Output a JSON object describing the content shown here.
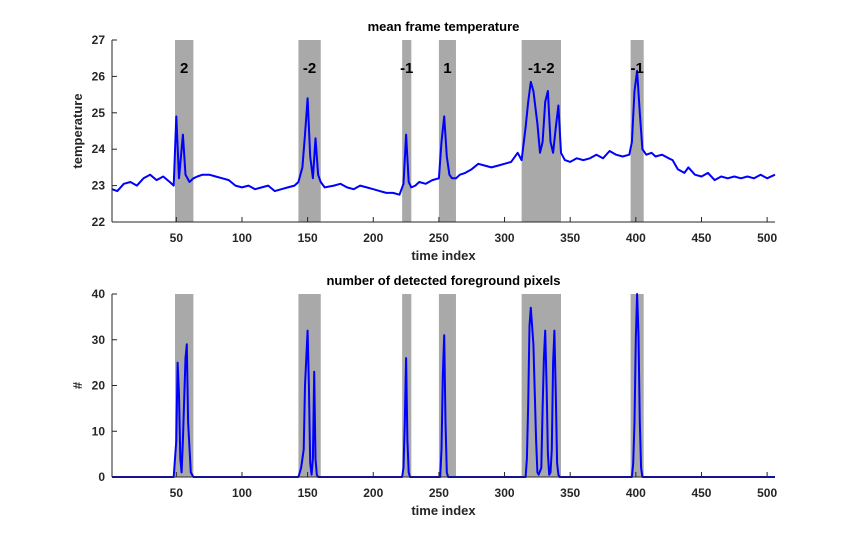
{
  "chart_data": [
    {
      "type": "line",
      "title": "mean frame temperature",
      "xlabel": "time index",
      "ylabel": "temperature",
      "xlim": [
        1,
        506
      ],
      "ylim": [
        22,
        27
      ],
      "xticks": [
        50,
        100,
        150,
        200,
        250,
        300,
        350,
        400,
        450,
        500
      ],
      "yticks": [
        22,
        23,
        24,
        25,
        26,
        27
      ],
      "line_color": "#0000ff",
      "shade_color": "#a9a9a9",
      "shaded_regions": [
        {
          "start": 49,
          "end": 63,
          "label": "2"
        },
        {
          "start": 143,
          "end": 160,
          "label": "-2"
        },
        {
          "start": 222,
          "end": 229,
          "label": "-1"
        },
        {
          "start": 250,
          "end": 263,
          "label": "1"
        },
        {
          "start": 313,
          "end": 343,
          "label": "-1-2"
        },
        {
          "start": 396,
          "end": 406,
          "label": "-1"
        }
      ],
      "series": [
        {
          "x": [
            1,
            5,
            10,
            15,
            20,
            25,
            30,
            35,
            40,
            45,
            48,
            50,
            52,
            55,
            57,
            60,
            63,
            66,
            70,
            75,
            80,
            85,
            90,
            95,
            100,
            105,
            110,
            115,
            120,
            125,
            130,
            135,
            140,
            143,
            146,
            148,
            150,
            152,
            154,
            156,
            158,
            160,
            163,
            170,
            175,
            180,
            185,
            190,
            195,
            200,
            205,
            210,
            215,
            220,
            223,
            225,
            227,
            229,
            232,
            235,
            240,
            245,
            250,
            252,
            254,
            256,
            258,
            260,
            263,
            266,
            270,
            275,
            280,
            285,
            290,
            295,
            300,
            305,
            310,
            313,
            316,
            318,
            320,
            322,
            325,
            327,
            329,
            331,
            333,
            335,
            337,
            339,
            341,
            343,
            346,
            350,
            355,
            360,
            365,
            370,
            375,
            380,
            385,
            390,
            395,
            397,
            399,
            401,
            403,
            405,
            408,
            412,
            415,
            420,
            425,
            428,
            432,
            437,
            440,
            445,
            450,
            455,
            460,
            465,
            470,
            475,
            480,
            485,
            490,
            495,
            500,
            506
          ],
          "y": [
            22.9,
            22.85,
            23.05,
            23.1,
            23.0,
            23.2,
            23.3,
            23.15,
            23.25,
            23.1,
            23.0,
            24.9,
            23.2,
            24.4,
            23.3,
            23.1,
            23.2,
            23.25,
            23.3,
            23.3,
            23.25,
            23.2,
            23.15,
            23.0,
            22.95,
            23.0,
            22.9,
            22.95,
            23.0,
            22.85,
            22.9,
            22.95,
            23.0,
            23.1,
            23.5,
            24.4,
            25.4,
            23.8,
            23.2,
            24.3,
            23.3,
            23.1,
            22.95,
            23.0,
            23.05,
            22.95,
            22.9,
            23.0,
            22.95,
            22.9,
            22.85,
            22.8,
            22.8,
            22.75,
            23.05,
            24.4,
            23.1,
            22.95,
            23.0,
            23.1,
            23.05,
            23.15,
            23.2,
            24.2,
            24.9,
            23.8,
            23.3,
            23.2,
            23.2,
            23.3,
            23.35,
            23.45,
            23.6,
            23.55,
            23.5,
            23.55,
            23.6,
            23.65,
            23.9,
            23.7,
            24.6,
            25.3,
            25.85,
            25.6,
            24.7,
            23.9,
            24.2,
            25.3,
            25.6,
            24.2,
            23.9,
            24.6,
            25.2,
            23.9,
            23.7,
            23.65,
            23.75,
            23.7,
            23.75,
            23.85,
            23.75,
            23.95,
            23.85,
            23.8,
            23.85,
            24.2,
            25.6,
            26.15,
            25.0,
            24.0,
            23.85,
            23.9,
            23.8,
            23.85,
            23.75,
            23.7,
            23.45,
            23.35,
            23.5,
            23.3,
            23.25,
            23.35,
            23.15,
            23.25,
            23.2,
            23.25,
            23.2,
            23.25,
            23.2,
            23.3,
            23.2,
            23.3
          ]
        }
      ]
    },
    {
      "type": "line",
      "title": "number of detected foreground pixels",
      "xlabel": "time index",
      "ylabel": "#",
      "xlim": [
        1,
        506
      ],
      "ylim": [
        0,
        40
      ],
      "xticks": [
        50,
        100,
        150,
        200,
        250,
        300,
        350,
        400,
        450,
        500
      ],
      "yticks": [
        0,
        10,
        20,
        30,
        40
      ],
      "line_color": "#0000ff",
      "shade_color": "#a9a9a9",
      "shaded_regions": [
        {
          "start": 49,
          "end": 63
        },
        {
          "start": 143,
          "end": 160
        },
        {
          "start": 222,
          "end": 229
        },
        {
          "start": 250,
          "end": 263
        },
        {
          "start": 313,
          "end": 343
        },
        {
          "start": 396,
          "end": 406
        }
      ],
      "series": [
        {
          "x": [
            1,
            48,
            50,
            51,
            52,
            53,
            54,
            55,
            57,
            58,
            59,
            61,
            63,
            143,
            145,
            147,
            148,
            150,
            151,
            152,
            153,
            154,
            155,
            156,
            157,
            158,
            160,
            222,
            223,
            224,
            225,
            226,
            227,
            228,
            251,
            252,
            253,
            254,
            255,
            256,
            257,
            316,
            317,
            318,
            319,
            320,
            322,
            324,
            325,
            326,
            328,
            329,
            330,
            331,
            332,
            333,
            334,
            335,
            336,
            337,
            338,
            339,
            340,
            341,
            342,
            397,
            398,
            399,
            400,
            401,
            402,
            403,
            404,
            405,
            506
          ],
          "y": [
            0,
            0,
            8,
            25,
            18,
            4,
            1,
            8,
            26,
            29,
            12,
            1,
            0,
            0,
            2,
            6,
            20,
            32,
            20,
            3,
            0.5,
            4,
            23,
            4,
            0.5,
            0,
            0,
            0,
            2,
            12,
            26,
            8,
            1,
            0,
            0,
            6,
            22,
            31,
            12,
            1,
            0,
            0,
            4,
            16,
            33,
            37,
            29,
            8,
            1,
            0.5,
            2,
            15,
            26,
            32,
            20,
            5,
            0.5,
            1,
            6,
            25,
            32,
            18,
            3,
            0.5,
            0,
            0,
            3,
            12,
            30,
            40,
            31,
            12,
            2,
            0,
            0
          ]
        }
      ]
    }
  ]
}
